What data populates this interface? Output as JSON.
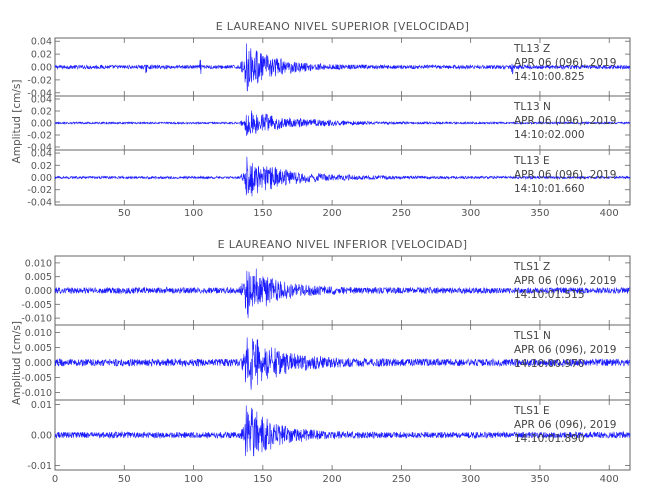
{
  "chart_data": [
    {
      "type": "line",
      "title": "E LAUREANO NIVEL SUPERIOR [VELOCIDAD]",
      "ylabel": "Amplitud [cm/s]",
      "xlim": [
        0,
        415
      ],
      "xticks": [
        "50",
        "100",
        "150",
        "200",
        "250",
        "300",
        "350",
        "400"
      ],
      "series": [
        {
          "station": "TL13",
          "component": "Z",
          "date": "APR 06 (096), 2019",
          "time": "14:10:00.825",
          "ylim": [
            -0.045,
            0.045
          ],
          "yticks": [
            "0.04",
            "0.02",
            "0.00",
            "-0.02",
            "-0.04"
          ],
          "features": {
            "noise": 0.003,
            "onset": 137,
            "peak": 0.04,
            "coda_end": 200,
            "spikes": [
              [
                66,
                0.007
              ],
              [
                105,
                0.009
              ],
              [
                330,
                0.01
              ]
            ]
          }
        },
        {
          "station": "TL13",
          "component": "N",
          "date": "APR 06 (096), 2019",
          "time": "14:10:02.000",
          "ylim": [
            -0.045,
            0.045
          ],
          "yticks": [
            "0.04",
            "0.02",
            "0.00",
            "-0.02",
            "-0.04"
          ],
          "features": {
            "noise": 0.0015,
            "onset": 137,
            "peak": 0.025,
            "coda_end": 240,
            "spikes": []
          }
        },
        {
          "station": "TL13",
          "component": "E",
          "date": "APR 06 (096), 2019",
          "time": "14:10:01.660",
          "ylim": [
            -0.045,
            0.045
          ],
          "yticks": [
            "0.04",
            "0.02",
            "0.00",
            "-0.02",
            "-0.04"
          ],
          "features": {
            "noise": 0.002,
            "onset": 137,
            "peak": 0.035,
            "coda_end": 230,
            "spikes": []
          }
        }
      ]
    },
    {
      "type": "line",
      "title": "E LAUREANO NIVEL INFERIOR [VELOCIDAD]",
      "ylabel": "Amplitud [cm/s]",
      "xlim": [
        0,
        415
      ],
      "xticks": [
        "0",
        "50",
        "100",
        "150",
        "200",
        "250",
        "300",
        "350",
        "400"
      ],
      "series": [
        {
          "station": "TLS1",
          "component": "Z",
          "date": "APR 06 (096), 2019",
          "time": "14:10:01.515",
          "ylim": [
            -0.0125,
            0.0125
          ],
          "yticks": [
            "0.010",
            "0.005",
            "0.000",
            "-0.005",
            "-0.010"
          ],
          "features": {
            "noise": 0.0011,
            "onset": 137,
            "peak": 0.011,
            "coda_end": 200,
            "spikes": []
          }
        },
        {
          "station": "TLS1",
          "component": "N",
          "date": "APR 06 (096), 2019",
          "time": "14:10:00.970",
          "ylim": [
            -0.0125,
            0.0125
          ],
          "yticks": [
            "0.010",
            "0.005",
            "0.000",
            "-0.005",
            "-0.010"
          ],
          "features": {
            "noise": 0.0012,
            "onset": 137,
            "peak": 0.011,
            "coda_end": 210,
            "spikes": []
          }
        },
        {
          "station": "TLS1",
          "component": "E",
          "date": "APR 06 (096), 2019",
          "time": "14:10:01.890",
          "ylim": [
            -0.0115,
            0.0115
          ],
          "yticks": [
            "0.01",
            "0.00",
            "-0.01"
          ],
          "features": {
            "noise": 0.001,
            "onset": 137,
            "peak": 0.011,
            "coda_end": 200,
            "spikes": []
          }
        }
      ]
    }
  ]
}
